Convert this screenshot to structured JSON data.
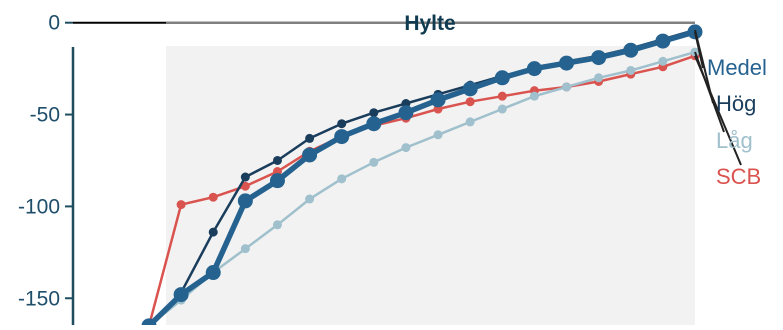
{
  "chart_data": {
    "type": "line",
    "title": "Hylte",
    "xlabel": "",
    "ylabel": "",
    "ylim": [
      -170,
      8
    ],
    "y_ticks": [
      0,
      -50,
      -100,
      -150
    ],
    "x_count": 18,
    "shaded_region": true,
    "zero_line": true,
    "series": [
      {
        "name": "SCB",
        "color": "#d9534f",
        "values": [
          -165,
          -99,
          -95,
          -89,
          -81,
          -70,
          -62,
          -56,
          -52,
          -47,
          -43,
          -40,
          -37,
          -35,
          -32,
          -28,
          -24,
          -18
        ]
      },
      {
        "name": "Låg",
        "color": "#9fc0cc",
        "values": [
          -165,
          -151,
          -136,
          -123,
          -110,
          -96,
          -85,
          -76,
          -68,
          -61,
          -54,
          -47,
          -40,
          -35,
          -30,
          -26,
          -21,
          -16
        ]
      },
      {
        "name": "Hög",
        "color": "#1a3d5c",
        "values": [
          -165,
          -147,
          -114,
          -84,
          -75,
          -63,
          -55,
          -49,
          -44,
          -39,
          -34,
          -29,
          -25,
          -21,
          -18,
          -14,
          -9,
          -4
        ]
      },
      {
        "name": "Medel",
        "color": "#25628f",
        "values": [
          -165,
          -148,
          -136,
          -97,
          -86,
          -72,
          -62,
          -55,
          -49,
          -42,
          -36,
          -30,
          -25,
          -22,
          -19,
          -15,
          -10,
          -5
        ]
      }
    ]
  }
}
